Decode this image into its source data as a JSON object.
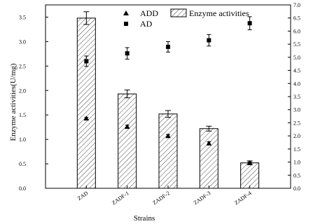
{
  "chart_data": {
    "type": "bar",
    "categories": [
      "ZAD",
      "ZADF-1",
      "ZADF-2",
      "ZADF-3",
      "ZADF-4"
    ],
    "xlabel": "Strains",
    "ylabel": "Enzyme activities(U/mg)",
    "ylim": [
      0,
      3.75
    ],
    "yticks": [
      "0.0",
      "0.5",
      "1.0",
      "1.5",
      "2.0",
      "2.5",
      "3.0",
      "3.5"
    ],
    "y2lim": [
      0,
      7.0
    ],
    "y2ticks": [
      "0.0",
      "0.5",
      "1.0",
      "1.5",
      "2.0",
      "2.5",
      "3.0",
      "3.5",
      "4.0",
      "4.5",
      "5.0",
      "5.5",
      "6.0",
      "6.5",
      "7.0"
    ],
    "legend_position": "top-right",
    "bars": {
      "name": "Enzyme activities",
      "pattern": "diagonal-hatch",
      "values": [
        3.48,
        1.93,
        1.52,
        1.22,
        0.52
      ],
      "errors": [
        0.13,
        0.08,
        0.07,
        0.05,
        0.04
      ]
    },
    "series": [
      {
        "name": "ADD",
        "marker": "triangle",
        "axis": "left",
        "values": [
          1.43,
          1.26,
          1.07,
          0.92,
          0.52
        ],
        "errors": [
          0.02,
          0.03,
          0.03,
          0.03,
          0.02
        ]
      },
      {
        "name": "AD",
        "marker": "square",
        "axis": "right",
        "values": [
          4.85,
          5.15,
          5.4,
          5.65,
          6.3
        ],
        "errors": [
          0.2,
          0.22,
          0.2,
          0.22,
          0.25
        ]
      }
    ]
  }
}
